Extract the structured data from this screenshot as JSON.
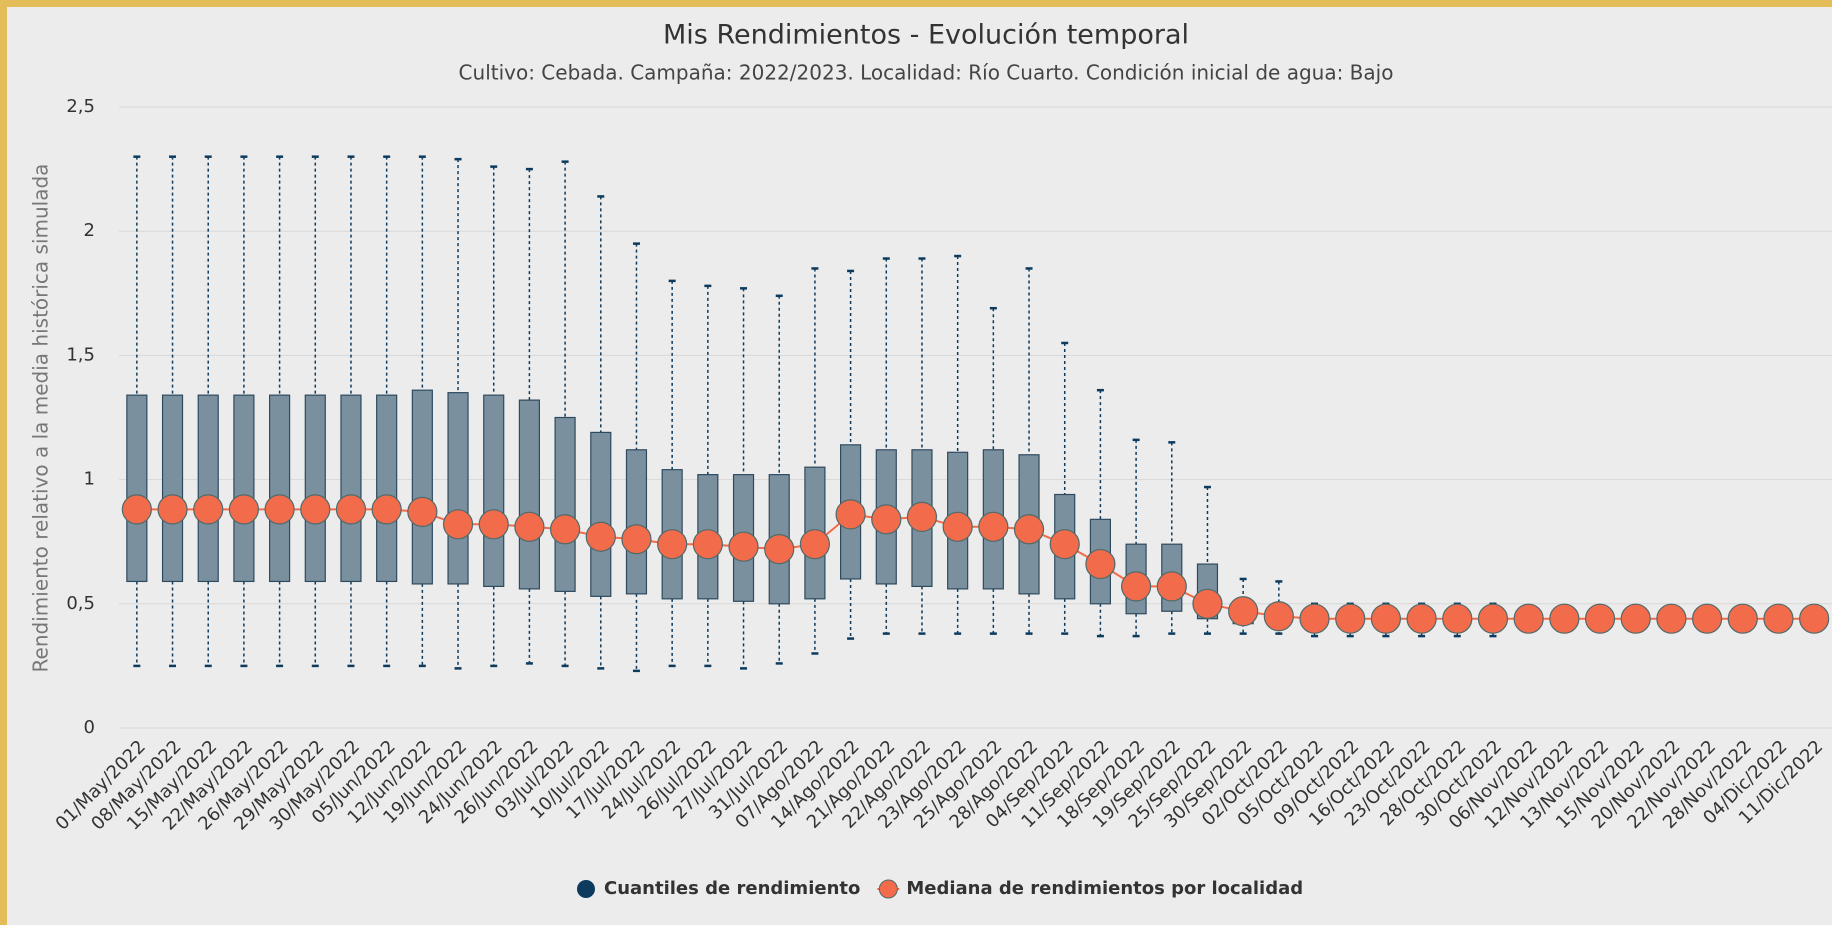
{
  "chart_data": {
    "type": "boxplot",
    "title": "Mis Rendimientos - Evolución temporal",
    "subtitle": "Cultivo: Cebada. Campaña: 2022/2023. Localidad: Río Cuarto. Condición inicial de agua: Bajo",
    "y_label": "Rendimiento relativo a la media histórica simulada",
    "categories": [
      "01/May/2022",
      "08/May/2022",
      "15/May/2022",
      "22/May/2022",
      "26/May/2022",
      "29/May/2022",
      "30/May/2022",
      "05/Jun/2022",
      "12/Jun/2022",
      "19/Jun/2022",
      "24/Jun/2022",
      "26/Jun/2022",
      "03/Jul/2022",
      "10/Jul/2022",
      "17/Jul/2022",
      "24/Jul/2022",
      "26/Jul/2022",
      "27/Jul/2022",
      "31/Jul/2022",
      "07/Ago/2022",
      "14/Ago/2022",
      "21/Ago/2022",
      "22/Ago/2022",
      "23/Ago/2022",
      "25/Ago/2022",
      "28/Ago/2022",
      "04/Sep/2022",
      "11/Sep/2022",
      "18/Sep/2022",
      "19/Sep/2022",
      "25/Sep/2022",
      "30/Sep/2022",
      "02/Oct/2022",
      "05/Oct/2022",
      "09/Oct/2022",
      "16/Oct/2022",
      "23/Oct/2022",
      "28/Oct/2022",
      "30/Oct/2022",
      "06/Nov/2022",
      "12/Nov/2022",
      "13/Nov/2022",
      "15/Nov/2022",
      "20/Nov/2022",
      "22/Nov/2022",
      "28/Nov/2022",
      "04/Dic/2022",
      "11/Dic/2022"
    ],
    "series": [
      {
        "name": "Cuantiles de rendimiento",
        "type": "boxplot",
        "color": "#0d3b5e",
        "fill": "#7a909f",
        "low": [
          0.25,
          0.25,
          0.25,
          0.25,
          0.25,
          0.25,
          0.25,
          0.25,
          0.25,
          0.24,
          0.25,
          0.26,
          0.25,
          0.24,
          0.23,
          0.25,
          0.25,
          0.24,
          0.26,
          0.3,
          0.36,
          0.38,
          0.38,
          0.38,
          0.38,
          0.38,
          0.38,
          0.37,
          0.37,
          0.38,
          0.38,
          0.38,
          0.38,
          0.37,
          0.37,
          0.37,
          0.37,
          0.37,
          0.37,
          0.4,
          0.4,
          0.4,
          0.4,
          0.4,
          0.4,
          0.4,
          0.4,
          0.4
        ],
        "q1": [
          0.59,
          0.59,
          0.59,
          0.59,
          0.59,
          0.59,
          0.59,
          0.59,
          0.58,
          0.58,
          0.57,
          0.56,
          0.55,
          0.53,
          0.54,
          0.52,
          0.52,
          0.51,
          0.5,
          0.52,
          0.6,
          0.58,
          0.57,
          0.56,
          0.56,
          0.54,
          0.52,
          0.5,
          0.46,
          0.47,
          0.44,
          0.42,
          0.41,
          0.41,
          0.41,
          0.41,
          0.41,
          0.41,
          0.41,
          0.41,
          0.41,
          0.41,
          0.41,
          0.41,
          0.41,
          0.41,
          0.41,
          0.41
        ],
        "q3": [
          1.34,
          1.34,
          1.34,
          1.34,
          1.34,
          1.34,
          1.34,
          1.34,
          1.36,
          1.35,
          1.34,
          1.32,
          1.25,
          1.19,
          1.12,
          1.04,
          1.02,
          1.02,
          1.02,
          1.05,
          1.14,
          1.12,
          1.12,
          1.11,
          1.12,
          1.1,
          0.94,
          0.84,
          0.74,
          0.74,
          0.66,
          0.5,
          0.48,
          0.47,
          0.47,
          0.47,
          0.47,
          0.47,
          0.47,
          0.47,
          0.47,
          0.47,
          0.47,
          0.47,
          0.47,
          0.47,
          0.47,
          0.47
        ],
        "high": [
          2.3,
          2.3,
          2.3,
          2.3,
          2.3,
          2.3,
          2.3,
          2.3,
          2.3,
          2.29,
          2.26,
          2.25,
          2.28,
          2.14,
          1.95,
          1.8,
          1.78,
          1.77,
          1.74,
          1.85,
          1.84,
          1.89,
          1.89,
          1.9,
          1.69,
          1.85,
          1.55,
          1.36,
          1.16,
          1.15,
          0.97,
          0.6,
          0.59,
          0.5,
          0.5,
          0.5,
          0.5,
          0.5,
          0.5,
          0.48,
          0.48,
          0.48,
          0.48,
          0.48,
          0.48,
          0.48,
          0.48,
          0.48
        ]
      },
      {
        "name": "Mediana de rendimientos por localidad",
        "type": "line",
        "color": "#f26b4a",
        "values": [
          0.88,
          0.88,
          0.88,
          0.88,
          0.88,
          0.88,
          0.88,
          0.88,
          0.87,
          0.82,
          0.82,
          0.81,
          0.8,
          0.77,
          0.76,
          0.74,
          0.74,
          0.73,
          0.72,
          0.74,
          0.86,
          0.84,
          0.85,
          0.81,
          0.81,
          0.8,
          0.74,
          0.66,
          0.57,
          0.57,
          0.5,
          0.47,
          0.45,
          0.44,
          0.44,
          0.44,
          0.44,
          0.44,
          0.44,
          0.44,
          0.44,
          0.44,
          0.44,
          0.44,
          0.44,
          0.44,
          0.44,
          0.44
        ]
      }
    ],
    "ylim": [
      0,
      2.5
    ],
    "yticks": [
      0,
      {
        "value": 0.5,
        "label": "0,5"
      },
      1,
      {
        "value": 1.5,
        "label": "1,5"
      },
      2,
      {
        "value": 2.5,
        "label": "2,5"
      }
    ],
    "grid": true,
    "legend": "bottom"
  }
}
